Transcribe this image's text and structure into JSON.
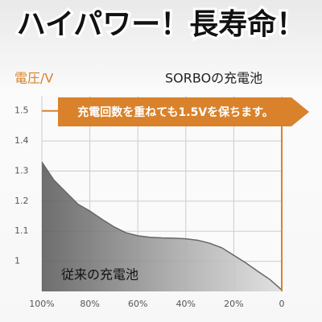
{
  "chart_data": {
    "type": "line",
    "title": "ハイパワー！長寿命！",
    "y_label": "電圧/V",
    "annotation": "充電回数を重ねても1.5Vを保ちます。",
    "xlim": [
      100,
      0
    ],
    "ylim": [
      0.9,
      1.55
    ],
    "xticks": [
      {
        "value": 100,
        "label": "100%"
      },
      {
        "value": 80,
        "label": "80%"
      },
      {
        "value": 60,
        "label": "60%"
      },
      {
        "value": 40,
        "label": "40%"
      },
      {
        "value": 20,
        "label": "20%"
      },
      0
    ],
    "yticks": [
      1.0,
      1.1,
      1.2,
      1.3,
      1.4,
      1.5
    ],
    "grid": true,
    "series": [
      {
        "name": "SORBOの充電池",
        "color": "#d9822b",
        "x": [
          100,
          0,
          0
        ],
        "values": [
          1.5,
          1.5,
          0.9
        ]
      },
      {
        "name": "従来の充電池",
        "color": "#666666",
        "x": [
          100,
          95,
          90,
          85,
          80,
          75,
          70,
          65,
          60,
          55,
          50,
          45,
          40,
          35,
          30,
          25,
          20,
          15,
          10,
          5,
          0
        ],
        "values": [
          1.33,
          1.27,
          1.23,
          1.19,
          1.167,
          1.14,
          1.115,
          1.095,
          1.085,
          1.08,
          1.078,
          1.077,
          1.075,
          1.07,
          1.06,
          1.045,
          1.02,
          0.995,
          0.967,
          0.94,
          0.905
        ]
      }
    ]
  }
}
